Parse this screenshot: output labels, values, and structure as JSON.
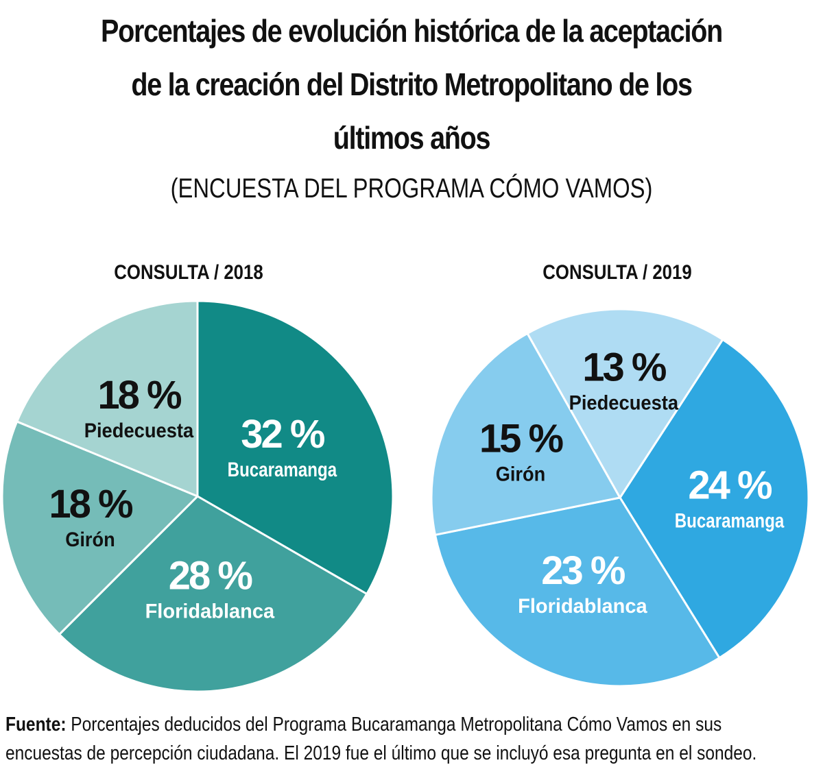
{
  "title_lines": [
    "Porcentajes de evolución histórica de la aceptación",
    "de la creación del Distrito Metropolitano de los",
    "últimos años"
  ],
  "subtitle": "(ENCUESTA DEL PROGRAMA CÓMO VAMOS)",
  "footer": {
    "source_label": "Fuente:",
    "line1": " Porcentajes deducidos del Programa Bucaramanga Metropolitana Cómo Vamos en sus",
    "line2": "encuestas de percepción ciudadana. El 2019 fue el último que se incluyó esa pregunta en el sondeo."
  },
  "colors": {
    "teal_dark": "#118a86",
    "teal_mid": "#40a19d",
    "teal_light": "#75bcb8",
    "teal_pale": "#a5d4d1",
    "blue_dark": "#2fa8e1",
    "blue_mid": "#57b9e8",
    "blue_light": "#86ccee",
    "blue_pale": "#afdcf3"
  },
  "chart_data": [
    {
      "type": "pie",
      "title": "CONSULTA / 2018",
      "slices": [
        {
          "label": "Bucaramanga",
          "value": 32,
          "value_label": "32 %",
          "color": "#118a86",
          "text_color": "#ffffff"
        },
        {
          "label": "Floridablanca",
          "value": 28,
          "value_label": "28 %",
          "color": "#40a19d",
          "text_color": "#ffffff"
        },
        {
          "label": "Girón",
          "value": 18,
          "value_label": "18 %",
          "color": "#75bcb8",
          "text_color": "#111111"
        },
        {
          "label": "Piedecuesta",
          "value": 18,
          "value_label": "18 %",
          "color": "#a5d4d1",
          "text_color": "#111111"
        }
      ]
    },
    {
      "type": "pie",
      "title": "CONSULTA  / 2019",
      "slices": [
        {
          "label": "Bucaramanga",
          "value": 24,
          "value_label": "24 %",
          "color": "#2fa8e1",
          "text_color": "#ffffff"
        },
        {
          "label": "Floridablanca",
          "value": 23,
          "value_label": "23 %",
          "color": "#57b9e8",
          "text_color": "#ffffff"
        },
        {
          "label": "Girón",
          "value": 15,
          "value_label": "15 %",
          "color": "#86ccee",
          "text_color": "#111111"
        },
        {
          "label": "Piedecuesta",
          "value": 13,
          "value_label": "13 %",
          "color": "#afdcf3",
          "text_color": "#111111"
        }
      ]
    }
  ]
}
